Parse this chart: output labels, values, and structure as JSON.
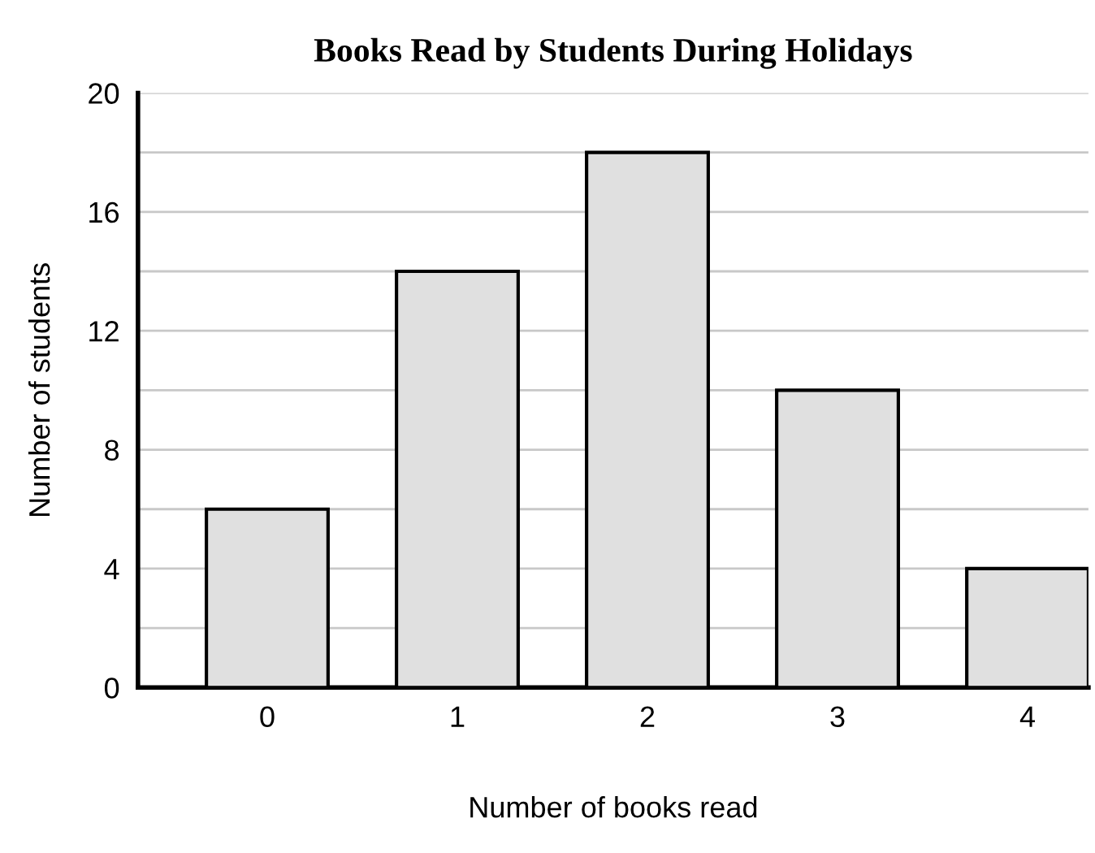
{
  "chart_data": {
    "type": "bar",
    "title": "Books Read by Students During Holidays",
    "xlabel": "Number of books read",
    "ylabel": "Number of students",
    "categories": [
      "0",
      "1",
      "2",
      "3",
      "4"
    ],
    "values": [
      6,
      14,
      18,
      10,
      4
    ],
    "color": "#e0e0e0",
    "ylim": [
      0,
      20
    ],
    "yticks": [
      0,
      {
        "value": 2,
        "label": null
      },
      4,
      {
        "value": 6,
        "label": null
      },
      8,
      {
        "value": 10,
        "label": null
      },
      12,
      {
        "value": 14,
        "label": null
      },
      16,
      {
        "value": 18,
        "label": null
      },
      20
    ],
    "grid": "y"
  }
}
